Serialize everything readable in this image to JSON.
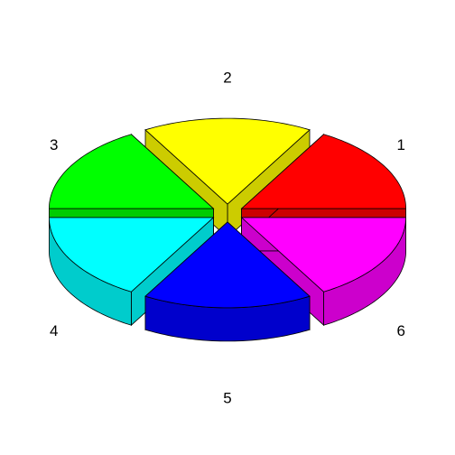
{
  "chart_data": {
    "type": "pie",
    "style": "3d-exploded",
    "title": "",
    "slices": [
      {
        "label": "1",
        "value": 1,
        "color": "#ff0000"
      },
      {
        "label": "2",
        "value": 1,
        "color": "#ffff00"
      },
      {
        "label": "3",
        "value": 1,
        "color": "#00ff00"
      },
      {
        "label": "4",
        "value": 1,
        "color": "#00ffff"
      },
      {
        "label": "5",
        "value": 1,
        "color": "#0000ff"
      },
      {
        "label": "6",
        "value": 1,
        "color": "#ff00ff"
      }
    ],
    "legend": "none"
  }
}
